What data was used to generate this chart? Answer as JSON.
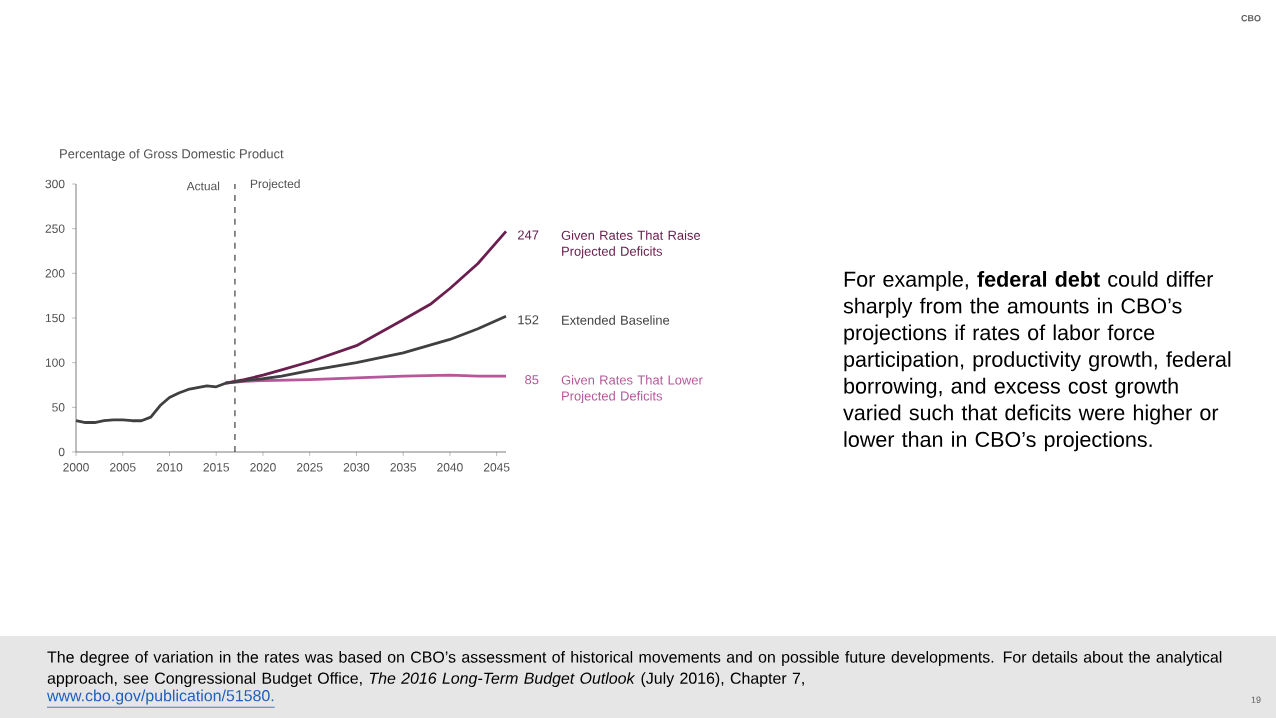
{
  "chart_data": {
    "type": "line",
    "ylabel": "Percentage of Gross Domestic Product",
    "xlim": [
      2000,
      2046
    ],
    "ylim": [
      0,
      300
    ],
    "xticks": [
      2000,
      2005,
      2010,
      2015,
      2020,
      2025,
      2030,
      2035,
      2040,
      2045
    ],
    "yticks": [
      0,
      50,
      100,
      150,
      200,
      250,
      300
    ],
    "grid": false,
    "marker": "none",
    "line_style": "solid",
    "ref_lines": [
      {
        "axis": "x",
        "value": 2017,
        "line_style": "dashed",
        "color": "#404040"
      }
    ],
    "series": [
      {
        "name": "Given Rates That Raise Projected Deficits",
        "color": "#6b1f4f",
        "x": [
          2016,
          2018,
          2020,
          2022,
          2025,
          2030,
          2035,
          2038,
          2040,
          2043,
          2046
        ],
        "values": [
          77,
          81,
          86,
          92,
          101,
          119,
          148,
          166,
          183,
          211,
          247
        ],
        "value_labels": [
          null,
          null,
          null,
          null,
          null,
          null,
          null,
          null,
          null,
          null,
          "247"
        ]
      },
      {
        "name": "Given Rates That Lower Projected Deficits",
        "color": "#b5579a",
        "x": [
          2016,
          2018,
          2020,
          2025,
          2030,
          2035,
          2040,
          2043,
          2046
        ],
        "values": [
          77,
          79,
          80,
          81,
          83,
          85,
          86,
          85,
          85
        ],
        "value_labels": [
          null,
          null,
          null,
          null,
          null,
          null,
          null,
          null,
          "85"
        ]
      },
      {
        "name": "Extended Baseline",
        "color": "#404040",
        "x": [
          2000,
          2001,
          2002,
          2003,
          2004,
          2005,
          2006,
          2007,
          2008,
          2009,
          2010,
          2011,
          2012,
          2013,
          2014,
          2015,
          2016,
          2018,
          2020,
          2022,
          2025,
          2030,
          2035,
          2040,
          2043,
          2046
        ],
        "values": [
          35,
          33,
          33,
          35,
          36,
          36,
          35,
          35,
          39,
          52,
          61,
          66,
          70,
          72,
          74,
          73,
          77,
          80,
          82,
          85,
          91,
          100,
          111,
          126,
          138,
          152
        ],
        "value_labels": [
          null,
          null,
          null,
          null,
          null,
          null,
          null,
          null,
          null,
          null,
          null,
          null,
          null,
          null,
          null,
          null,
          null,
          null,
          null,
          null,
          null,
          null,
          null,
          null,
          null,
          "152"
        ]
      }
    ],
    "annotations": [
      {
        "text": "Actual",
        "x": 2017,
        "y": 285
      },
      {
        "text": "Projected",
        "x": 2017,
        "y": 285
      },
      "For example, **federal debt** could differ sharply from the amounts in CBO’s projections if rates of labor force participation, productivity growth, federal borrowing, and excess cost growth varied such that deficits were higher or lower than in CBO’s projections.",
      "The degree of variation in the rates was based on CBO’s assessment of historical movements and on possible future developments. For details about the analytical approach, see Congressional Budget Office, *The 2016 Long-Term Budget Outlook* (July 2016), Chapter 7,",
      "www.cbo.gov/publication/51580.",
      "CBO",
      "19"
    ]
  }
}
